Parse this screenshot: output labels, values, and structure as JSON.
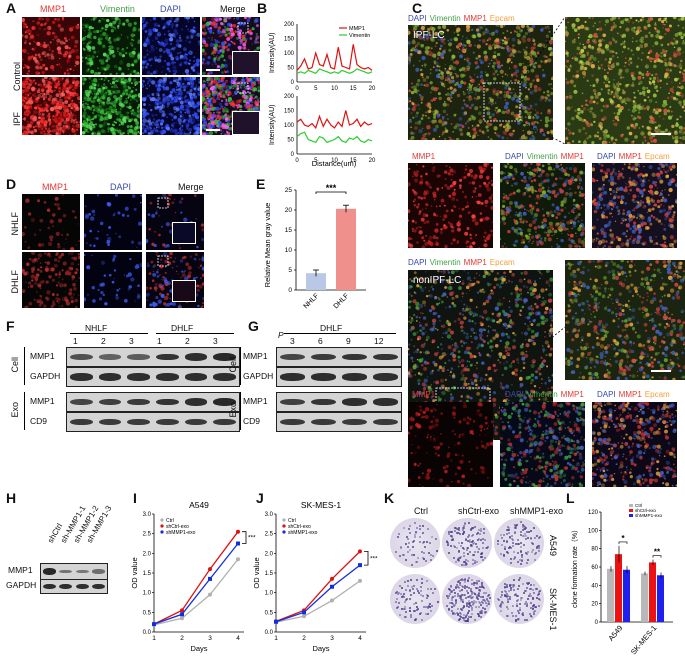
{
  "panels": {
    "A": {
      "letter": "A",
      "cols": [
        "MMP1",
        "Vimentin",
        "DAPI",
        "Merge"
      ],
      "col_colors": [
        "#e53935",
        "#43a047",
        "#3949ab",
        "#111111"
      ],
      "rows": [
        "Control",
        "IPF"
      ]
    },
    "B": {
      "letter": "B",
      "ylabel": "Intensity(AU)",
      "xlabel": "Distance(um)",
      "legend": [
        "MMP1",
        "Vimentin"
      ],
      "yticks": [
        "0",
        "50",
        "100",
        "150",
        "200"
      ],
      "xticks": [
        "0",
        "5",
        "10",
        "15",
        "20"
      ]
    },
    "C": {
      "letter": "C",
      "row1_title": "IPF-LC",
      "row2_title": "nonIPF-LC",
      "stain_labels": [
        "DAPI",
        "Vimentin",
        "MMP1",
        "Epcam"
      ],
      "stain_colors": [
        "#3949ab",
        "#43a047",
        "#e53935",
        "#f2a03a"
      ],
      "sub_a": "MMP1",
      "sub_b": "DAPI Vimentin MMP1",
      "sub_c": "DAPI MMP1 Epcam"
    },
    "D": {
      "letter": "D",
      "cols": [
        "MMP1",
        "DAPI",
        "Merge"
      ],
      "rows": [
        "NHLF",
        "DHLF"
      ]
    },
    "E": {
      "letter": "E",
      "ylabel": "Relative Mean gray value",
      "yticks": [
        "0",
        "5",
        "10",
        "15",
        "20",
        "25"
      ],
      "sig": "***"
    },
    "F": {
      "letter": "F",
      "groups": [
        "NHLF",
        "DHLF"
      ],
      "lanes": [
        "1",
        "2",
        "3",
        "1",
        "2",
        "3"
      ],
      "rows": [
        "MMP1",
        "GAPDH",
        "MMP1",
        "CD9"
      ],
      "side": [
        "Cell",
        "Exo"
      ]
    },
    "G": {
      "letter": "G",
      "group": "DHLF",
      "p_label": "P",
      "lanes": [
        "3",
        "6",
        "9",
        "12"
      ],
      "rows": [
        "MMP1",
        "GAPDH",
        "MMP1",
        "CD9"
      ],
      "side": [
        "Cell",
        "Exo"
      ]
    },
    "H": {
      "letter": "H",
      "lanes": [
        "shCtrl",
        "sh-MMP1-1",
        "sh-MMP1-2",
        "sh-MMP1-3"
      ],
      "rows": [
        "MMP1",
        "GAPDH"
      ]
    },
    "I": {
      "letter": "I",
      "title": "A549",
      "ylabel": "OD value",
      "xlabel": "Days",
      "legend": [
        "Ctrl",
        "shCtrl-exo",
        "shMMP1-exo"
      ],
      "yticks": [
        "0.0",
        "0.5",
        "1.0",
        "1.5",
        "2.0",
        "2.5",
        "3.0"
      ],
      "xticks": [
        "1",
        "2",
        "3",
        "4"
      ],
      "sig": "***"
    },
    "J": {
      "letter": "J",
      "title": "SK-MES-1",
      "ylabel": "OD value",
      "xlabel": "Days",
      "legend": [
        "Ctrl",
        "shCtrl-exo",
        "shMMP1-exo"
      ],
      "yticks": [
        "0.0",
        "0.5",
        "1.0",
        "1.5",
        "2.0",
        "2.5",
        "3.0"
      ],
      "xticks": [
        "1",
        "2",
        "3",
        "4"
      ],
      "sig": "***"
    },
    "K": {
      "letter": "K",
      "cols": [
        "Ctrl",
        "shCtrl-exo",
        "shMMP1-exo"
      ],
      "rows": [
        "A549",
        "SK-MES-1"
      ]
    },
    "L": {
      "letter": "L",
      "ylabel": "clone formation rate（%）",
      "legend": [
        "Ctrl",
        "shCtrl-exo",
        "shMMP1-exo"
      ],
      "yticks": [
        "0",
        "20",
        "40",
        "60",
        "80",
        "100",
        "120"
      ],
      "cats": [
        "A549",
        "SK-MES-1"
      ],
      "sig": [
        "*",
        "**"
      ]
    }
  },
  "chart_data": [
    {
      "type": "line",
      "panel": "B-Control",
      "x": [
        0,
        1,
        2,
        3,
        4,
        5,
        6,
        7,
        8,
        9,
        10,
        11,
        12,
        13,
        14,
        15,
        16,
        17,
        18,
        19,
        20
      ],
      "series": [
        {
          "name": "MMP1",
          "values": [
            40,
            55,
            80,
            45,
            50,
            100,
            60,
            55,
            95,
            50,
            45,
            120,
            55,
            50,
            45,
            130,
            60,
            50,
            45,
            50,
            40
          ]
        },
        {
          "name": "Vimentin",
          "values": [
            30,
            35,
            30,
            40,
            35,
            30,
            45,
            40,
            35,
            30,
            35,
            30,
            40,
            35,
            30,
            35,
            45,
            40,
            35,
            30,
            35
          ]
        }
      ],
      "ylim": [
        0,
        200
      ],
      "xlim": [
        0,
        20
      ]
    },
    {
      "type": "line",
      "panel": "B-IPF",
      "x": [
        0,
        1,
        2,
        3,
        4,
        5,
        6,
        7,
        8,
        9,
        10,
        11,
        12,
        13,
        14,
        15,
        16,
        17,
        18,
        19,
        20
      ],
      "series": [
        {
          "name": "MMP1",
          "values": [
            110,
            120,
            100,
            95,
            105,
            90,
            130,
            95,
            120,
            100,
            90,
            110,
            95,
            150,
            100,
            105,
            120,
            95,
            110,
            100,
            105
          ]
        },
        {
          "name": "Vimentin",
          "values": [
            60,
            70,
            75,
            50,
            45,
            40,
            60,
            55,
            40,
            45,
            50,
            60,
            45,
            40,
            55,
            50,
            60,
            45,
            40,
            50,
            45
          ]
        }
      ],
      "ylim": [
        0,
        200
      ],
      "xlim": [
        0,
        20
      ]
    },
    {
      "type": "bar",
      "panel": "E",
      "categories": [
        "NHLF",
        "DHLF"
      ],
      "values": [
        4.2,
        20.3
      ],
      "errors": [
        0.8,
        0.9
      ],
      "ylabel": "Relative Mean gray value",
      "ylim": [
        0,
        25
      ]
    },
    {
      "type": "line",
      "panel": "I",
      "title": "A549",
      "xlabel": "Days",
      "ylabel": "OD value",
      "x": [
        1,
        2,
        3,
        4
      ],
      "series": [
        {
          "name": "Ctrl",
          "values": [
            0.18,
            0.35,
            0.95,
            1.85
          ]
        },
        {
          "name": "shCtrl-exo",
          "values": [
            0.2,
            0.55,
            1.6,
            2.55
          ]
        },
        {
          "name": "shMMP1-exo",
          "values": [
            0.2,
            0.45,
            1.35,
            2.25
          ]
        }
      ],
      "ylim": [
        0,
        3.0
      ]
    },
    {
      "type": "line",
      "panel": "J",
      "title": "SK-MES-1",
      "xlabel": "Days",
      "ylabel": "OD value",
      "x": [
        1,
        2,
        3,
        4
      ],
      "series": [
        {
          "name": "Ctrl",
          "values": [
            0.25,
            0.4,
            0.8,
            1.3
          ]
        },
        {
          "name": "shCtrl-exo",
          "values": [
            0.27,
            0.55,
            1.35,
            2.05
          ]
        },
        {
          "name": "shMMP1-exo",
          "values": [
            0.26,
            0.5,
            1.15,
            1.7
          ]
        }
      ],
      "ylim": [
        0,
        3.0
      ]
    },
    {
      "type": "bar",
      "panel": "L",
      "categories": [
        "A549",
        "SK-MES-1"
      ],
      "series": [
        {
          "name": "Ctrl",
          "values": [
            58,
            53
          ]
        },
        {
          "name": "shCtrl-exo",
          "values": [
            74,
            65
          ]
        },
        {
          "name": "shMMP1-exo",
          "values": [
            57,
            51
          ]
        }
      ],
      "errors": [
        [
          3,
          2
        ],
        [
          9,
          3
        ],
        [
          4,
          3
        ]
      ],
      "ylim": [
        0,
        120
      ]
    }
  ]
}
